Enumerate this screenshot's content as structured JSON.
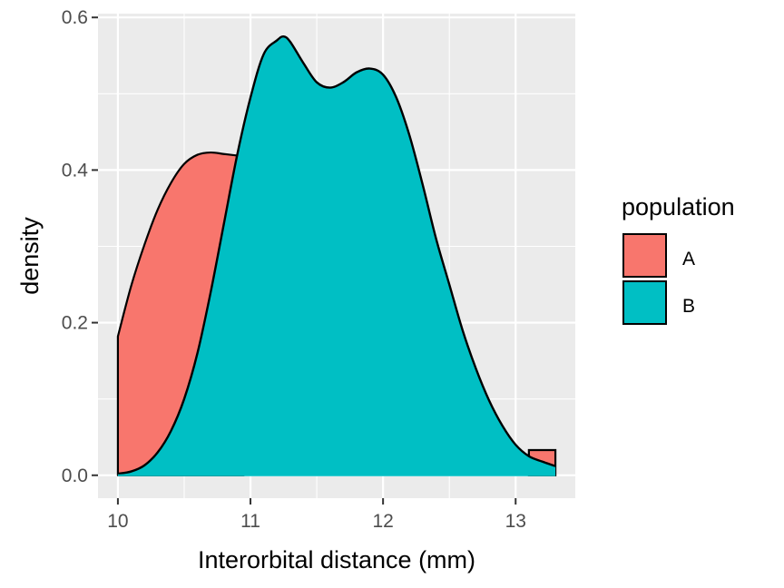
{
  "chart_data": {
    "type": "area",
    "title": "",
    "xlabel": "Interorbital distance (mm)",
    "ylabel": "density",
    "xlim": [
      9.85,
      13.45
    ],
    "ylim": [
      -0.03,
      0.605
    ],
    "x_ticks": [
      10,
      11,
      12,
      13
    ],
    "x_tick_labels": [
      "10",
      "11",
      "12",
      "13"
    ],
    "y_ticks": [
      0.0,
      0.2,
      0.4,
      0.6
    ],
    "y_tick_labels": [
      "0.0",
      "0.2",
      "0.4",
      "0.6"
    ],
    "grid": true,
    "legend": {
      "title": "population",
      "position": "right"
    },
    "series": [
      {
        "name": "A",
        "color": "#F8766D",
        "x": [
          10.0,
          10.1,
          10.2,
          10.3,
          10.4,
          10.5,
          10.6,
          10.7,
          10.8,
          10.9,
          10.95
        ],
        "y": [
          0.182,
          0.248,
          0.302,
          0.348,
          0.383,
          0.408,
          0.42,
          0.423,
          0.421,
          0.419,
          0.418
        ],
        "x_tail": [
          13.1,
          13.3
        ],
        "y_tail": [
          0.033,
          0.033
        ]
      },
      {
        "name": "B",
        "color": "#00BFC4",
        "x": [
          10.0,
          10.1,
          10.2,
          10.3,
          10.4,
          10.5,
          10.6,
          10.7,
          10.8,
          10.9,
          11.0,
          11.1,
          11.2,
          11.25,
          11.3,
          11.4,
          11.5,
          11.6,
          11.7,
          11.8,
          11.9,
          12.0,
          12.1,
          12.2,
          12.3,
          12.4,
          12.5,
          12.6,
          12.7,
          12.8,
          12.9,
          13.0,
          13.1,
          13.2,
          13.3
        ],
        "y": [
          0.002,
          0.005,
          0.013,
          0.03,
          0.058,
          0.1,
          0.16,
          0.24,
          0.33,
          0.42,
          0.495,
          0.552,
          0.57,
          0.575,
          0.568,
          0.54,
          0.515,
          0.508,
          0.515,
          0.528,
          0.533,
          0.525,
          0.495,
          0.445,
          0.38,
          0.31,
          0.25,
          0.19,
          0.14,
          0.098,
          0.065,
          0.04,
          0.025,
          0.018,
          0.012
        ]
      }
    ]
  }
}
